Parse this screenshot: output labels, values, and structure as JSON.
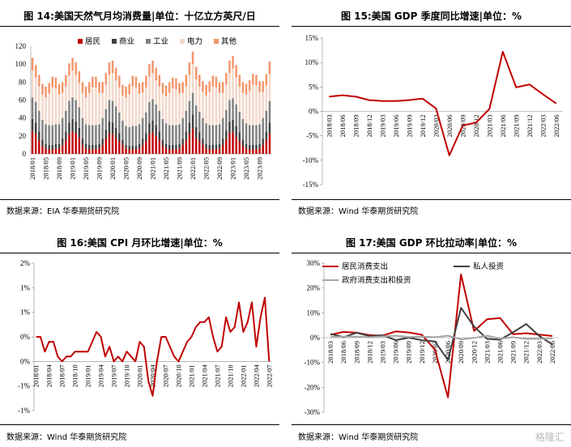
{
  "chart_data": [
    {
      "type": "bar",
      "title": "图 14:美国天然气月均消费量|单位：十亿立方英尺/日",
      "stacked": true,
      "ylim": [
        0,
        120
      ],
      "yticks": [
        0,
        20,
        40,
        60,
        80,
        100,
        120
      ],
      "xtick_labels": [
        "2018/01",
        "2018/05",
        "2018/09",
        "2019/01",
        "2019/05",
        "2019/09",
        "2020/01",
        "2020/05",
        "2020/09",
        "2021/01",
        "2021/05",
        "2021/09",
        "2022/01",
        "2022/05",
        "2022/09",
        "2023/01",
        "2023/05",
        "2023/09"
      ],
      "xtick_every": 4,
      "legend_position": "top-center",
      "colors": [
        "#c00000",
        "#404040",
        "#808080",
        "#f4d7c8",
        "#f2956a"
      ],
      "series": [
        {
          "name": "居民",
          "values": [
            25,
            22,
            15,
            9,
            6,
            5,
            5,
            6,
            6,
            10,
            15,
            22,
            25,
            23,
            18,
            10,
            6,
            5,
            5,
            5,
            6,
            10,
            17,
            23,
            22,
            18,
            14,
            10,
            6,
            5,
            5,
            5,
            6,
            10,
            14,
            22,
            24,
            20,
            15,
            9,
            6,
            5,
            5,
            5,
            6,
            10,
            15,
            22,
            28,
            18,
            14,
            10,
            6,
            5,
            5,
            5,
            6,
            10,
            16,
            23,
            24,
            19,
            14,
            9,
            6,
            5,
            5,
            5,
            6,
            10,
            15,
            22
          ]
        },
        {
          "name": "商业",
          "values": [
            14,
            13,
            10,
            7,
            5,
            5,
            5,
            5,
            5,
            7,
            10,
            13,
            14,
            13,
            11,
            7,
            5,
            5,
            5,
            5,
            5,
            7,
            10,
            13,
            13,
            11,
            9,
            6,
            4,
            4,
            4,
            4,
            5,
            7,
            9,
            12,
            13,
            12,
            10,
            7,
            5,
            5,
            5,
            5,
            5,
            7,
            10,
            13,
            16,
            12,
            10,
            7,
            5,
            5,
            5,
            5,
            5,
            7,
            10,
            13,
            14,
            12,
            10,
            7,
            5,
            5,
            5,
            5,
            5,
            7,
            10,
            13
          ]
        },
        {
          "name": "工业",
          "values": [
            24,
            23,
            23,
            22,
            22,
            22,
            22,
            22,
            22,
            23,
            23,
            24,
            24,
            24,
            23,
            23,
            22,
            22,
            22,
            22,
            22,
            23,
            23,
            24,
            24,
            24,
            23,
            21,
            21,
            21,
            22,
            22,
            22,
            23,
            23,
            24,
            24,
            23,
            23,
            23,
            23,
            22,
            22,
            22,
            22,
            23,
            23,
            24,
            24,
            24,
            23,
            23,
            23,
            22,
            22,
            22,
            22,
            23,
            23,
            24,
            24,
            24,
            23,
            23,
            23,
            22,
            22,
            22,
            22,
            23,
            23,
            24
          ]
        },
        {
          "name": "电力",
          "values": [
            30,
            27,
            27,
            28,
            30,
            35,
            42,
            40,
            33,
            28,
            27,
            28,
            30,
            28,
            27,
            28,
            30,
            36,
            42,
            42,
            35,
            28,
            27,
            28,
            31,
            29,
            28,
            28,
            32,
            36,
            44,
            43,
            34,
            28,
            28,
            28,
            29,
            27,
            27,
            28,
            30,
            36,
            41,
            40,
            34,
            28,
            27,
            29,
            32,
            29,
            28,
            29,
            31,
            37,
            43,
            42,
            35,
            28,
            28,
            30,
            33,
            30,
            28,
            29,
            32,
            38,
            45,
            44,
            36,
            29,
            28,
            30
          ]
        },
        {
          "name": "其他",
          "values": [
            14,
            14,
            13,
            12,
            12,
            12,
            12,
            12,
            12,
            12,
            13,
            14,
            14,
            14,
            13,
            12,
            12,
            12,
            12,
            12,
            12,
            12,
            13,
            14,
            14,
            14,
            13,
            12,
            12,
            12,
            12,
            12,
            12,
            12,
            13,
            14,
            14,
            14,
            13,
            12,
            12,
            12,
            12,
            12,
            12,
            12,
            13,
            14,
            14,
            14,
            13,
            12,
            12,
            12,
            12,
            12,
            12,
            12,
            13,
            14,
            14,
            14,
            13,
            12,
            12,
            12,
            12,
            12,
            12,
            12,
            13,
            14
          ]
        }
      ],
      "source": "数据来源：EIA 华泰期货研究院"
    },
    {
      "type": "line",
      "title": "图 15:美国 GDP 季度同比增速|单位：%",
      "ylim": [
        -15,
        15
      ],
      "yticks": [
        -15,
        -10,
        -5,
        0,
        5,
        10,
        15
      ],
      "ytick_format": "percent",
      "categories": [
        "2018/03",
        "2018/06",
        "2018/09",
        "2018/12",
        "2019/03",
        "2019/06",
        "2019/09",
        "2019/12",
        "2020/03",
        "2020/06",
        "2020/09",
        "2020/12",
        "2021/03",
        "2021/06",
        "2021/09",
        "2021/12",
        "2022/03",
        "2022/06"
      ],
      "color": "#c00000",
      "values": [
        3.0,
        3.3,
        3.0,
        2.3,
        2.1,
        2.1,
        2.3,
        2.6,
        0.6,
        -9.0,
        -2.9,
        -2.3,
        0.5,
        12.2,
        4.9,
        5.5,
        3.5,
        1.6
      ],
      "source": "数据来源：Wind 华泰期货研究院"
    },
    {
      "type": "line",
      "title": "图 16:美国 CPI 月环比增速|单位：%",
      "ylim": [
        -1,
        2
      ],
      "yticks": [
        -1,
        -0.5,
        0,
        0.5,
        1,
        1.5,
        2
      ],
      "ytick_labels": [
        "-1%",
        "-1%",
        "0%",
        "0%",
        "1%",
        "1%",
        "2%"
      ],
      "xtick_labels": [
        "2018/01",
        "2018/04",
        "2018/07",
        "2018/10",
        "2019/01",
        "2019/04",
        "2019/07",
        "2019/10",
        "2020/01",
        "2020/04",
        "2020/07",
        "2020/10",
        "2021/01",
        "2021/04",
        "2021/07",
        "2021/10",
        "2022/01",
        "2022/04",
        "2022/07"
      ],
      "xtick_every": 3,
      "color": "#c00000",
      "values": [
        0.5,
        0.5,
        0.2,
        0.4,
        0.4,
        0.1,
        0.0,
        0.1,
        0.1,
        0.2,
        0.2,
        0.2,
        0.2,
        0.4,
        0.6,
        0.5,
        0.1,
        0.3,
        0.0,
        0.1,
        0.0,
        0.2,
        0.1,
        0.0,
        0.4,
        0.3,
        -0.4,
        -0.7,
        0.0,
        0.5,
        0.5,
        0.3,
        0.1,
        0.0,
        0.2,
        0.4,
        0.5,
        0.7,
        0.8,
        0.8,
        0.9,
        0.5,
        0.2,
        0.3,
        0.9,
        0.6,
        0.7,
        1.2,
        0.6,
        0.8,
        1.2,
        0.3,
        0.9,
        1.3,
        0.0
      ],
      "source": "数据来源：Wind 华泰期货研究院"
    },
    {
      "type": "line",
      "title": "图 17:美国 GDP 环比拉动率|单位：%",
      "ylim": [
        -30,
        30
      ],
      "yticks": [
        -30,
        -20,
        -10,
        0,
        10,
        20,
        30
      ],
      "ytick_format": "percent",
      "categories": [
        "2018/03",
        "2018/06",
        "2018/09",
        "2018/12",
        "2019/03",
        "2019/06",
        "2019/09",
        "2019/12",
        "2020/03",
        "2020/06",
        "2020/09",
        "2020/12",
        "2021/03",
        "2021/06",
        "2021/09",
        "2021/12",
        "2022/03",
        "2022/06"
      ],
      "series": [
        {
          "name": "居民消费支出",
          "color": "#c00000",
          "values": [
            1.2,
            2.3,
            2.0,
            1.0,
            0.8,
            2.5,
            2.1,
            1.2,
            -4.8,
            -24.0,
            25.5,
            2.7,
            7.4,
            7.9,
            1.4,
            1.8,
            1.2,
            0.7
          ]
        },
        {
          "name": "私人投资",
          "color": "#404040",
          "values": [
            1.5,
            0.2,
            2.0,
            0.6,
            1.0,
            -1.0,
            0.0,
            -1.0,
            -1.5,
            -9.0,
            12.0,
            4.5,
            -0.5,
            -0.8,
            2.2,
            5.5,
            0.7,
            -2.7
          ]
        },
        {
          "name": "政府消费支出和投资",
          "color": "#a6a6a6",
          "values": [
            0.3,
            0.4,
            0.4,
            0.2,
            0.5,
            0.8,
            0.3,
            0.4,
            0.2,
            0.8,
            -0.7,
            -0.1,
            0.8,
            -0.4,
            0.2,
            -0.5,
            -0.5,
            -0.3
          ]
        }
      ],
      "source": "数据来源：Wind 华泰期货研究院"
    }
  ],
  "watermark": "格隆汇"
}
